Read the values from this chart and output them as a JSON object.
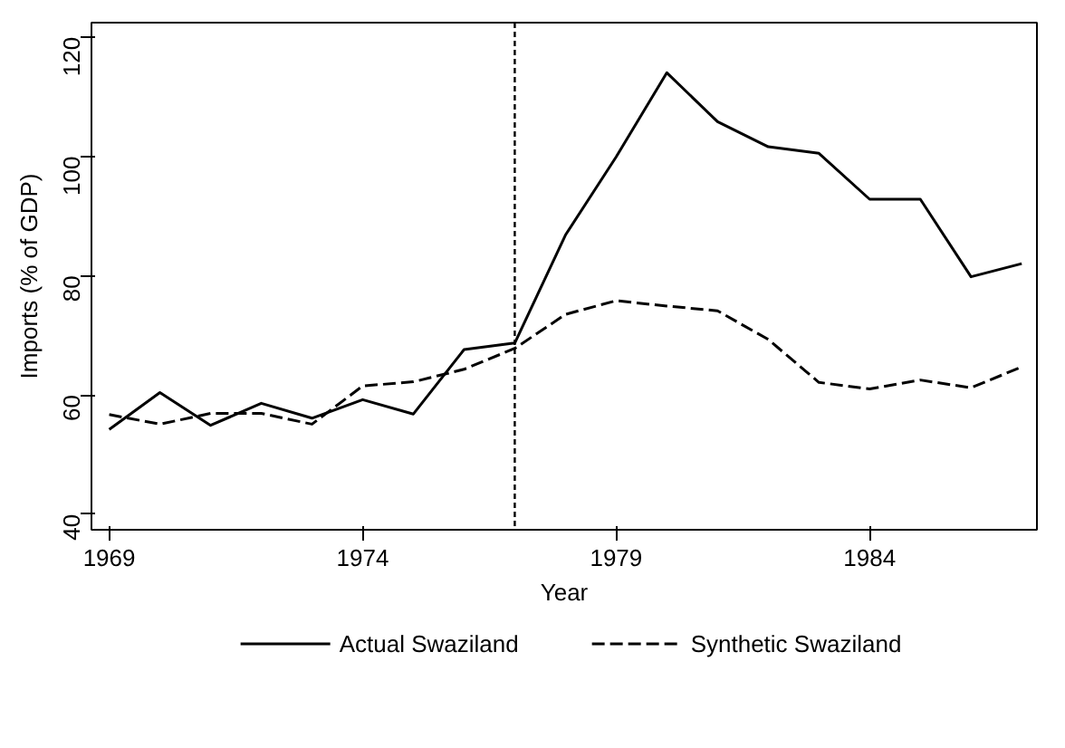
{
  "chart_data": {
    "type": "line",
    "xlabel": "Year",
    "ylabel": "Imports (% of GDP)",
    "x": [
      1969,
      1970,
      1971,
      1972,
      1973,
      1974,
      1975,
      1976,
      1977,
      1978,
      1979,
      1980,
      1981,
      1982,
      1983,
      1984,
      1985,
      1986,
      1987
    ],
    "series": [
      {
        "name": "Actual Swaziland",
        "color": "#000000",
        "line_style": "solid",
        "values": [
          54.2,
          60.4,
          54.9,
          58.6,
          56.1,
          59.2,
          56.8,
          67.6,
          68.7,
          86.8,
          99.9,
          114.0,
          105.8,
          101.6,
          100.5,
          92.8,
          92.8,
          79.8,
          82.0
        ]
      },
      {
        "name": "Synthetic Swaziland",
        "color": "#000000",
        "line_style": "dashed",
        "values": [
          56.7,
          55.1,
          56.9,
          56.9,
          55.1,
          61.5,
          62.2,
          64.3,
          67.8,
          73.5,
          75.8,
          74.9,
          74.1,
          69.3,
          62.1,
          61.0,
          62.5,
          61.2,
          64.7
        ]
      }
    ],
    "xlim": [
      1968.65,
      1987.3
    ],
    "ylim": [
      37.4,
      122.4
    ],
    "xticks": [
      1969,
      1974,
      1979,
      1984
    ],
    "yticks": [
      40,
      60,
      80,
      100,
      120
    ],
    "ref_lines": [
      {
        "axis": "x",
        "value": 1977,
        "color": "#000000",
        "line_style": "dotted"
      }
    ],
    "grid": false,
    "legend": "bottom",
    "marker": "none"
  }
}
